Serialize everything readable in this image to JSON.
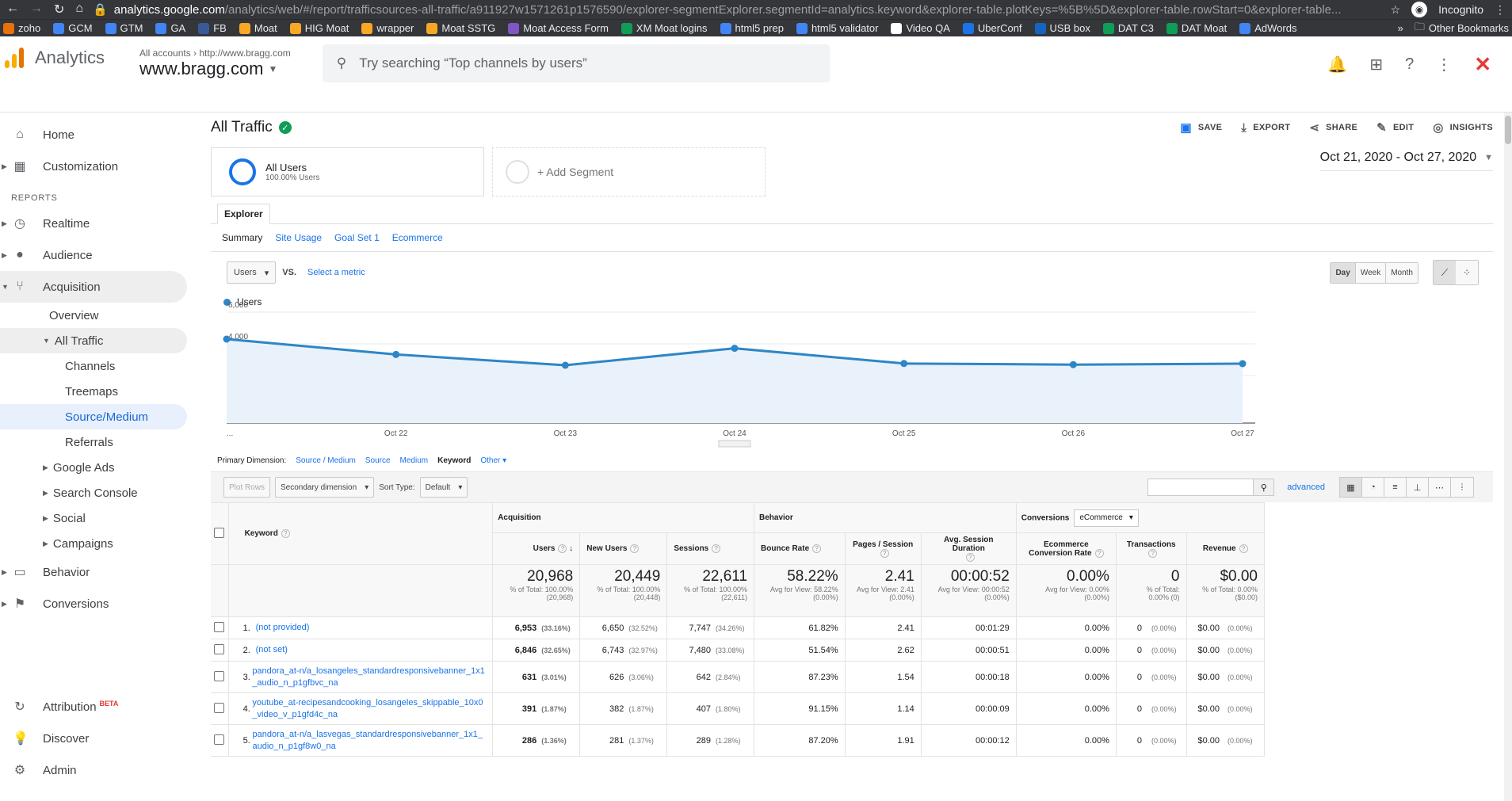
{
  "browser": {
    "url_host": "analytics.google.com",
    "url_path": "/analytics/web/#/report/trafficsources-all-traffic/a911927w1571261p1576590/explorer-segmentExplorer.segmentId=analytics.keyword&explorer-table.plotKeys=%5B%5D&explorer-table.rowStart=0&explorer-table...",
    "mode": "Incognito",
    "bookmarks": [
      {
        "label": "zoho",
        "color": "#e8710a"
      },
      {
        "label": "GCM",
        "color": "#4285f4"
      },
      {
        "label": "GTM",
        "color": "#4285f4"
      },
      {
        "label": "GA",
        "color": "#4285f4"
      },
      {
        "label": "FB",
        "color": "#3b5998"
      },
      {
        "label": "Moat",
        "color": "#f9a825"
      },
      {
        "label": "HIG Moat",
        "color": "#f9a825"
      },
      {
        "label": "wrapper",
        "color": "#f9a825"
      },
      {
        "label": "Moat SSTG",
        "color": "#f9a825"
      },
      {
        "label": "Moat Access Form",
        "color": "#7e57c2"
      },
      {
        "label": "XM Moat logins",
        "color": "#0f9d58"
      },
      {
        "label": "html5 prep",
        "color": "#4285f4"
      },
      {
        "label": "html5 validator",
        "color": "#4285f4"
      },
      {
        "label": "Video QA",
        "color": "#ffffff"
      },
      {
        "label": "UberConf",
        "color": "#1a73e8"
      },
      {
        "label": "USB box",
        "color": "#1565c0"
      },
      {
        "label": "DAT C3",
        "color": "#0f9d58"
      },
      {
        "label": "DAT Moat",
        "color": "#0f9d58"
      },
      {
        "label": "AdWords",
        "color": "#4285f4"
      }
    ],
    "other_bookmarks": "Other Bookmarks",
    "overflow": "»"
  },
  "header": {
    "app_name": "Analytics",
    "crumb_all": "All accounts",
    "crumb_url": "http://www.bragg.com",
    "property": "www.bragg.com",
    "search_placeholder": "Try searching “Top channels by users”"
  },
  "sidebar": {
    "home": "Home",
    "customization": "Customization",
    "reports_label": "REPORTS",
    "realtime": "Realtime",
    "audience": "Audience",
    "acquisition": "Acquisition",
    "overview": "Overview",
    "all_traffic": "All Traffic",
    "channels": "Channels",
    "treemaps": "Treemaps",
    "source_medium": "Source/Medium",
    "referrals": "Referrals",
    "google_ads": "Google Ads",
    "search_console": "Search Console",
    "social": "Social",
    "campaigns": "Campaigns",
    "behavior": "Behavior",
    "conversions": "Conversions",
    "attribution": "Attribution",
    "attribution_badge": "BETA",
    "discover": "Discover",
    "admin": "Admin"
  },
  "report": {
    "title": "All Traffic",
    "actions": {
      "save": "SAVE",
      "export": "EXPORT",
      "share": "SHARE",
      "edit": "EDIT",
      "insights": "INSIGHTS"
    },
    "segment_name": "All Users",
    "segment_sub": "100.00% Users",
    "add_segment": "+ Add Segment",
    "date_range": "Oct 21, 2020 - Oct 27, 2020",
    "explorer_tab": "Explorer",
    "subtabs": {
      "summary": "Summary",
      "site_usage": "Site Usage",
      "goal_set": "Goal Set 1",
      "ecommerce": "Ecommerce"
    },
    "metric_select": "Users",
    "vs": "VS.",
    "select_metric": "Select a metric",
    "granularity": {
      "day": "Day",
      "week": "Week",
      "month": "Month"
    }
  },
  "chart_data": {
    "type": "line",
    "series": [
      {
        "name": "Users",
        "color": "#2d86c7",
        "values": [
          4300,
          3330,
          2650,
          3720,
          2760,
          2690,
          2750
        ]
      }
    ],
    "x": [
      "...",
      "Oct 22",
      "Oct 23",
      "Oct 24",
      "Oct 25",
      "Oct 26",
      "Oct 27"
    ],
    "yticks": [
      "6,000",
      "4,000",
      "2,000"
    ],
    "ylim": [
      0,
      6000
    ],
    "grid": true
  },
  "dimension_bar": {
    "label": "Primary Dimension:",
    "source_medium": "Source / Medium",
    "source": "Source",
    "medium": "Medium",
    "keyword": "Keyword",
    "other": "Other"
  },
  "toolbar": {
    "plot_rows": "Plot Rows",
    "secondary_dimension": "Secondary dimension",
    "sort_type_label": "Sort Type:",
    "sort_type": "Default",
    "advanced": "advanced"
  },
  "table": {
    "groups": {
      "acquisition": "Acquisition",
      "behavior": "Behavior",
      "conversions": "Conversions",
      "conversions_select": "eCommerce"
    },
    "columns": {
      "keyword": "Keyword",
      "users": "Users",
      "new_users": "New Users",
      "sessions": "Sessions",
      "bounce_rate": "Bounce Rate",
      "pages_session": "Pages / Session",
      "avg_duration": "Avg. Session Duration",
      "ecom_rate": "Ecommerce Conversion Rate",
      "transactions": "Transactions",
      "revenue": "Revenue"
    },
    "totals": {
      "users": "20,968",
      "users_sub1": "% of Total: 100.00%",
      "users_sub2": "(20,968)",
      "new_users": "20,449",
      "new_users_sub1": "% of Total: 100.00%",
      "new_users_sub2": "(20,448)",
      "sessions": "22,611",
      "sessions_sub1": "% of Total: 100.00%",
      "sessions_sub2": "(22,611)",
      "bounce": "58.22%",
      "bounce_sub1": "Avg for View: 58.22%",
      "bounce_sub2": "(0.00%)",
      "pages": "2.41",
      "pages_sub1": "Avg for View: 2.41",
      "pages_sub2": "(0.00%)",
      "duration": "00:00:52",
      "duration_sub1": "Avg for View: 00:00:52",
      "duration_sub2": "(0.00%)",
      "ecom": "0.00%",
      "ecom_sub1": "Avg for View: 0.00%",
      "ecom_sub2": "(0.00%)",
      "trans": "0",
      "trans_sub1": "% of Total:",
      "trans_sub2": "0.00% (0)",
      "revenue": "$0.00",
      "revenue_sub1": "% of Total: 0.00%",
      "revenue_sub2": "($0.00)"
    },
    "rows": [
      {
        "num": "1.",
        "kw": "(not provided)",
        "users": "6,953",
        "users_pct": "(33.16%)",
        "new": "6,650",
        "new_pct": "(32.52%)",
        "sess": "7,747",
        "sess_pct": "(34.26%)",
        "bounce": "61.82%",
        "pages": "2.41",
        "dur": "00:01:29",
        "ecom": "0.00%",
        "trans": "0",
        "trans_pct": "(0.00%)",
        "rev": "$0.00",
        "rev_pct": "(0.00%)"
      },
      {
        "num": "2.",
        "kw": "(not set)",
        "users": "6,846",
        "users_pct": "(32.65%)",
        "new": "6,743",
        "new_pct": "(32.97%)",
        "sess": "7,480",
        "sess_pct": "(33.08%)",
        "bounce": "51.54%",
        "pages": "2.62",
        "dur": "00:00:51",
        "ecom": "0.00%",
        "trans": "0",
        "trans_pct": "(0.00%)",
        "rev": "$0.00",
        "rev_pct": "(0.00%)"
      },
      {
        "num": "3.",
        "kw": "pandora_at-n/a_losangeles_standardresponsivebanner_1x1_audio_n_p1gfbvc_na",
        "users": "631",
        "users_pct": "(3.01%)",
        "new": "626",
        "new_pct": "(3.06%)",
        "sess": "642",
        "sess_pct": "(2.84%)",
        "bounce": "87.23%",
        "pages": "1.54",
        "dur": "00:00:18",
        "ecom": "0.00%",
        "trans": "0",
        "trans_pct": "(0.00%)",
        "rev": "$0.00",
        "rev_pct": "(0.00%)"
      },
      {
        "num": "4.",
        "kw": "youtube_at-recipesandcooking_losangeles_skippable_10x0_video_v_p1gfd4c_na",
        "users": "391",
        "users_pct": "(1.87%)",
        "new": "382",
        "new_pct": "(1.87%)",
        "sess": "407",
        "sess_pct": "(1.80%)",
        "bounce": "91.15%",
        "pages": "1.14",
        "dur": "00:00:09",
        "ecom": "0.00%",
        "trans": "0",
        "trans_pct": "(0.00%)",
        "rev": "$0.00",
        "rev_pct": "(0.00%)"
      },
      {
        "num": "5.",
        "kw": "pandora_at-n/a_lasvegas_standardresponsivebanner_1x1_audio_n_p1gf8w0_na",
        "users": "286",
        "users_pct": "(1.36%)",
        "new": "281",
        "new_pct": "(1.37%)",
        "sess": "289",
        "sess_pct": "(1.28%)",
        "bounce": "87.20%",
        "pages": "1.91",
        "dur": "00:00:12",
        "ecom": "0.00%",
        "trans": "0",
        "trans_pct": "(0.00%)",
        "rev": "$0.00",
        "rev_pct": "(0.00%)"
      }
    ]
  }
}
